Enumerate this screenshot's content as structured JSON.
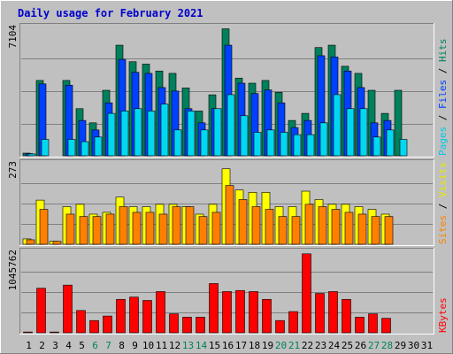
{
  "chart_data": {
    "type": "bar",
    "title": "Daily usage for February 2021",
    "categories": [
      "1",
      "2",
      "3",
      "4",
      "5",
      "6",
      "7",
      "8",
      "9",
      "10",
      "11",
      "12",
      "13",
      "14",
      "15",
      "16",
      "17",
      "18",
      "19",
      "20",
      "21",
      "22",
      "23",
      "24",
      "25",
      "26",
      "27",
      "28",
      "29",
      "30",
      "31"
    ],
    "weekend_days": [
      "6",
      "7",
      "13",
      "14",
      "20",
      "21",
      "27",
      "28"
    ],
    "panels": [
      {
        "name": "hits-files-pages",
        "ymax": 7104,
        "ymax_label": "7104",
        "ylabel_parts": [
          {
            "text": "Pages",
            "color": "#00c8e8"
          },
          {
            "text": " / ",
            "color": "#000000"
          },
          {
            "text": "Files",
            "color": "#0040ff"
          },
          {
            "text": " / ",
            "color": "#000000"
          },
          {
            "text": "Hits",
            "color": "#008060"
          }
        ],
        "series": [
          {
            "name": "Hits",
            "color": "#00805c",
            "values": [
              145,
              4140,
              0,
              4140,
              2590,
              1810,
              3600,
              6080,
              5170,
              5040,
              4660,
              4530,
              3730,
              2460,
              3350,
              6980,
              4270,
              3990,
              4140,
              3490,
              1940,
              2330,
              5950,
              6080,
              4920,
              4530,
              3600,
              2330,
              3600,
              0,
              0
            ]
          },
          {
            "name": "Files",
            "color": "#0040ff",
            "values": [
              120,
              3950,
              0,
              3880,
              1940,
              1420,
              2910,
              5300,
              4590,
              4530,
              3750,
              3560,
              2590,
              1810,
              2590,
              6080,
              3990,
              3420,
              3620,
              2910,
              1550,
              1940,
              5500,
              5430,
              4660,
              3750,
              1810,
              1940,
              0,
              0,
              0
            ]
          },
          {
            "name": "Pages",
            "color": "#00d8f0",
            "values": [
              100,
              900,
              0,
              900,
              775,
              1030,
              2330,
              2460,
              2590,
              2460,
              2840,
              1420,
              2460,
              1420,
              2590,
              3360,
              2200,
              1290,
              1420,
              1290,
              1160,
              1160,
              1810,
              3360,
              2590,
              2590,
              1030,
              1420,
              900,
              0,
              0
            ]
          }
        ]
      },
      {
        "name": "visits-sites",
        "ymax": 273,
        "ymax_label": "273",
        "ylabel_parts": [
          {
            "text": "Sites",
            "color": "#ff8000"
          },
          {
            "text": " / ",
            "color": "#000000"
          },
          {
            "text": "Visits",
            "color": "#e8e800"
          }
        ],
        "series": [
          {
            "name": "Visits",
            "color": "#ffff00",
            "values": [
              18,
              148,
              10,
              126,
              134,
              101,
              107,
              158,
              126,
              126,
              134,
              134,
              126,
              101,
              134,
              253,
              182,
              174,
              174,
              126,
              126,
              178,
              150,
              134,
              134,
              126,
              117,
              101,
              0,
              0,
              0
            ]
          },
          {
            "name": "Sites",
            "color": "#ff8000",
            "values": [
              15,
              117,
              10,
              101,
              93,
              93,
              101,
              126,
              107,
              107,
              101,
              126,
              126,
              93,
              107,
              197,
              150,
              126,
              117,
              93,
              93,
              134,
              126,
              117,
              107,
              101,
              93,
              93,
              0,
              0,
              0
            ]
          }
        ]
      },
      {
        "name": "kbytes",
        "ymax": 1045762,
        "ymax_label": "1045762",
        "ylabel_parts": [
          {
            "text": "KBytes",
            "color": "#ff0000"
          }
        ],
        "series": [
          {
            "name": "KBytes",
            "color": "#ff0000",
            "values": [
              10000,
              572000,
              10000,
              612000,
              286000,
              157000,
              215000,
              429000,
              458000,
              415000,
              529000,
              243000,
              200000,
              200000,
              632000,
              529000,
              543000,
              529000,
              429000,
              157000,
              272000,
              1014000,
              505000,
              529000,
              429000,
              200000,
              243000,
              186000,
              0,
              0,
              0
            ]
          }
        ]
      }
    ]
  }
}
